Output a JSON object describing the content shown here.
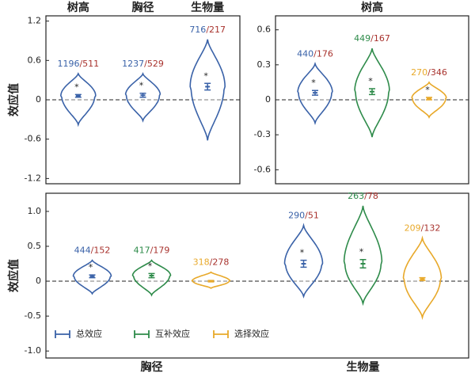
{
  "chart_data": [
    {
      "type": "violin",
      "categories": [
        "树高",
        "胸径",
        "生物量"
      ],
      "category_position": "top",
      "ylabel": "效应值",
      "ylim": [
        -1.28,
        1.28
      ],
      "yticks": [
        -1.2,
        -0.6,
        0,
        0.6,
        1.2
      ],
      "zero_line": true,
      "ratio_color": "#a8322d",
      "series": [
        {
          "color": "#3a62a8",
          "means": [
            0.06,
            0.07,
            0.2
          ],
          "ci": [
            0.02,
            0.03,
            0.05
          ],
          "mins": [
            -0.38,
            -0.32,
            -0.62
          ],
          "maxs": [
            0.4,
            0.4,
            0.92
          ],
          "labels": [
            "1196/511",
            "1237/529",
            "716/217"
          ],
          "stars": [
            "*",
            "*",
            "*"
          ]
        }
      ]
    },
    {
      "type": "violin",
      "categories": [
        "树高"
      ],
      "category_position": "top",
      "ylim": [
        -0.72,
        0.72
      ],
      "yticks": [
        -0.6,
        -0.3,
        0,
        0.3,
        0.6
      ],
      "zero_line": true,
      "ratio_color": "#a8322d",
      "series": [
        {
          "color": "#3a62a8",
          "means": [
            0.06
          ],
          "ci": [
            0.02
          ],
          "mins": [
            -0.2
          ],
          "maxs": [
            0.31
          ],
          "labels": [
            "440/176"
          ],
          "stars": [
            "*"
          ]
        },
        {
          "color": "#2e8b4a",
          "means": [
            0.07
          ],
          "ci": [
            0.025
          ],
          "mins": [
            -0.32
          ],
          "maxs": [
            0.44
          ],
          "labels": [
            "449/167"
          ],
          "stars": [
            "*"
          ]
        },
        {
          "color": "#e8a92a",
          "means": [
            0.01
          ],
          "ci": [
            0.01
          ],
          "mins": [
            -0.15
          ],
          "maxs": [
            0.15
          ],
          "labels": [
            "270/346"
          ],
          "stars": [
            "*"
          ]
        }
      ]
    },
    {
      "type": "violin",
      "categories": [
        "胸径",
        "生物量"
      ],
      "category_position": "bottom",
      "ylabel": "效应值",
      "ylim": [
        -1.1,
        1.26
      ],
      "yticks": [
        {
          "value": -1,
          "label": "-1.0"
        },
        -0.5,
        0,
        0.5,
        {
          "value": 1,
          "label": "1.0"
        }
      ],
      "zero_line": true,
      "ratio_color": "#a8322d",
      "legend": "lower left",
      "series": [
        {
          "name": "总效应",
          "color": "#3a62a8",
          "means": [
            0.07,
            0.25
          ],
          "ci": [
            0.02,
            0.05
          ],
          "mins": [
            -0.18,
            -0.22
          ],
          "maxs": [
            0.3,
            0.8
          ],
          "labels": [
            "444/152",
            "290/51"
          ],
          "stars": [
            "*",
            "*"
          ]
        },
        {
          "name": "互补效应",
          "color": "#2e8b4a",
          "means": [
            0.08,
            0.25
          ],
          "ci": [
            0.03,
            0.06
          ],
          "mins": [
            -0.2,
            -0.32
          ],
          "maxs": [
            0.3,
            1.08
          ],
          "labels": [
            "417/179",
            "263/78"
          ],
          "stars": [
            "*",
            "*"
          ]
        },
        {
          "name": "选择效应",
          "color": "#e8a92a",
          "means": [
            0.0,
            0.03
          ],
          "ci": [
            0.01,
            0.02
          ],
          "mins": [
            -0.1,
            -0.52
          ],
          "maxs": [
            0.13,
            0.62
          ],
          "labels": [
            "318/278",
            "209/132"
          ],
          "stars": [
            null,
            null
          ]
        }
      ]
    }
  ]
}
